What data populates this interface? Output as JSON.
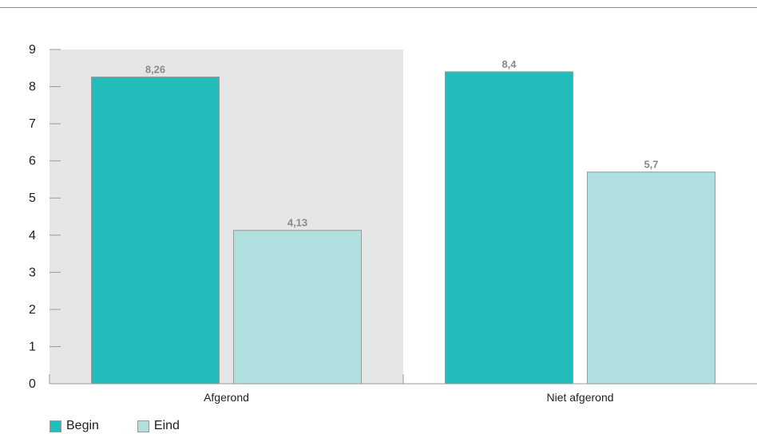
{
  "chart_data": {
    "type": "bar",
    "categories": [
      "Afgerond",
      "Niet afgerond"
    ],
    "series": [
      {
        "name": "Begin",
        "values": [
          8.26,
          8.4
        ],
        "labels": [
          "8,26",
          "8,4"
        ],
        "color": "#22bcbb"
      },
      {
        "name": "Eind",
        "values": [
          4.13,
          5.7
        ],
        "labels": [
          "4,13",
          "5,7"
        ],
        "color": "#b0dfdf"
      }
    ],
    "ylim": [
      0,
      9
    ],
    "yticks": [
      "0",
      "1",
      "2",
      "3",
      "4",
      "5",
      "6",
      "7",
      "8",
      "9"
    ],
    "grid": false,
    "legend_position": "bottom-left",
    "highlight_category": "Afgerond",
    "highlight_color": "#e5e6e7",
    "axis_color": "#9a9a9a"
  }
}
